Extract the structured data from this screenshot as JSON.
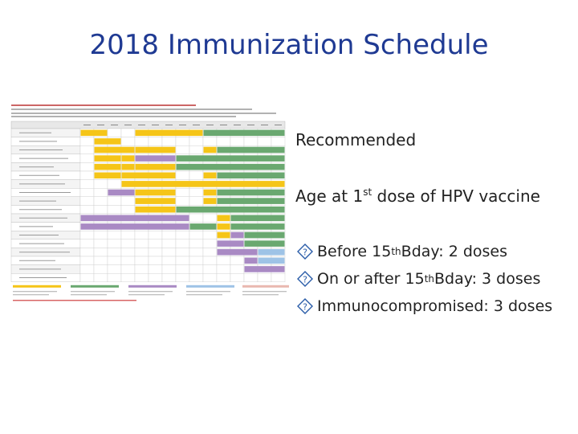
{
  "title": "2018 Immunization Schedule",
  "points": [
    {
      "text": "Recommended"
    },
    {
      "before": "Age at 1",
      "sup": "st",
      "after": " dose of HPV vaccine"
    }
  ],
  "bullets": [
    {
      "before": "Before 15",
      "sup": "th",
      "after": " Bday: 2 doses"
    },
    {
      "before": "On or after 15",
      "sup": "th",
      "after": " Bday: 3 doses"
    },
    {
      "before": "Immunocompromised: 3 doses"
    }
  ]
}
